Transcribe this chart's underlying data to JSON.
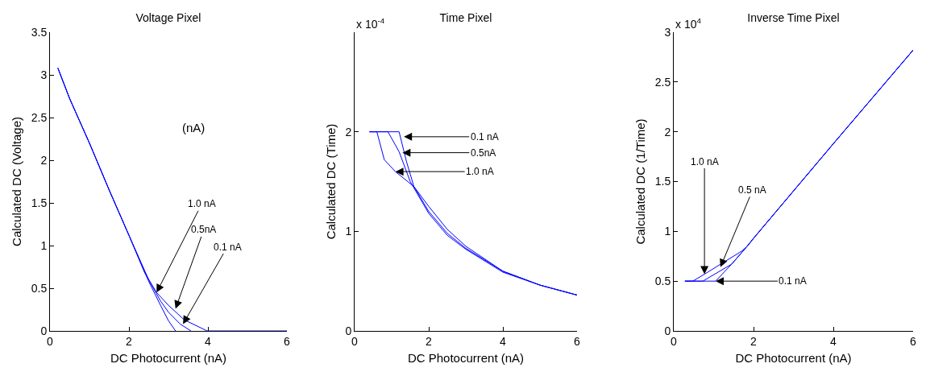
{
  "chart_data": [
    {
      "type": "line",
      "title": "Voltage Pixel",
      "xlabel": "DC Photocurrent (nA)",
      "ylabel": "Calculated DC (Voltage)",
      "xlim": [
        0,
        6
      ],
      "xticks": [
        0,
        2,
        4,
        6
      ],
      "ylim": [
        0,
        3.5
      ],
      "yticks": [
        0,
        0.5,
        1,
        1.5,
        2,
        2.5,
        3,
        3.5
      ],
      "grid": false,
      "marker": "none",
      "line_style": "solid",
      "series": [
        {
          "color": "#0000ff",
          "x": [
            0.2,
            0.5,
            1,
            1.5,
            2,
            2.5,
            2.8,
            3.0,
            3.18
          ],
          "values": [
            3.08,
            2.72,
            2.2,
            1.65,
            1.12,
            0.58,
            0.3,
            0.12,
            0
          ]
        },
        {
          "color": "#0000ff",
          "x": [
            0.2,
            0.5,
            1,
            1.5,
            2,
            2.5,
            2.8,
            3.0,
            3.3,
            3.57
          ],
          "values": [
            3.08,
            2.72,
            2.2,
            1.65,
            1.12,
            0.6,
            0.35,
            0.22,
            0.08,
            0
          ]
        },
        {
          "color": "#0000ff",
          "x": [
            0.2,
            0.5,
            1,
            1.5,
            2,
            2.4,
            2.7,
            3.0,
            3.4,
            3.98,
            6
          ],
          "values": [
            3.08,
            2.72,
            2.2,
            1.65,
            1.12,
            0.68,
            0.45,
            0.3,
            0.13,
            0,
            0
          ]
        }
      ],
      "annotations": [
        "(nA)",
        {
          "text": "1.0 nA",
          "x": 2.7,
          "y": 0.45
        },
        {
          "text": "0.5nA",
          "x": 3.18,
          "y": 0.26
        },
        {
          "text": "0.1 nA",
          "x": 3.37,
          "y": 0.08
        }
      ]
    },
    {
      "type": "line",
      "title": "Time Pixel",
      "xlabel": "DC Photocurrent (nA)",
      "ylabel": "Calculated DC (Time)",
      "xlim": [
        0,
        6
      ],
      "xticks": [
        0,
        2,
        4,
        6
      ],
      "ylim": [
        0,
        3
      ],
      "yticks": [
        0,
        1,
        2
      ],
      "grid": false,
      "marker": "none",
      "line_style": "solid",
      "series": [
        {
          "color": "#0000ff",
          "x": [
            0.4,
            1.2,
            1.4,
            1.6,
            2,
            2.5,
            3,
            4,
            5,
            6
          ],
          "values": [
            2,
            2,
            1.7,
            1.45,
            1.2,
            0.98,
            0.83,
            0.6,
            0.46,
            0.36
          ]
        },
        {
          "color": "#0000ff",
          "x": [
            0.4,
            0.9,
            1.2,
            1.5,
            2,
            2.5,
            3,
            4,
            5,
            6
          ],
          "values": [
            2,
            2,
            1.8,
            1.5,
            1.18,
            0.96,
            0.82,
            0.59,
            0.46,
            0.36
          ]
        },
        {
          "color": "#0000ff",
          "x": [
            0.4,
            0.6,
            0.8,
            1.1,
            1.6,
            2,
            2.5,
            3,
            4,
            5,
            6
          ],
          "values": [
            2,
            2,
            1.72,
            1.6,
            1.45,
            1.25,
            1.02,
            0.85,
            0.6,
            0.46,
            0.36
          ]
        }
      ],
      "annotations": [
        "x 10$^{-4}$",
        {
          "text": "0.1 nA",
          "x": 1.33,
          "y": 1.95
        },
        {
          "text": "0.5nA",
          "x": 1.29,
          "y": 1.79
        },
        {
          "text": "1.0 nA",
          "x": 1.1,
          "y": 1.6
        }
      ]
    },
    {
      "type": "line",
      "title": "Inverse Time Pixel",
      "xlabel": "DC Photocurrent (nA)",
      "ylabel": "Calculated DC (1/Time)",
      "xlim": [
        0,
        6
      ],
      "xticks": [
        0,
        2,
        4,
        6
      ],
      "ylim": [
        0,
        3
      ],
      "yticks": [
        0,
        0.5,
        1,
        1.5,
        2,
        2.5,
        3
      ],
      "grid": false,
      "marker": "none",
      "line_style": "solid",
      "series": [
        {
          "color": "#0000ff",
          "x": [
            0.28,
            1.05,
            1.45,
            1.84,
            2,
            4,
            6
          ],
          "values": [
            0.5,
            0.5,
            0.67,
            0.85,
            0.93,
            1.88,
            2.82
          ]
        },
        {
          "color": "#0000ff",
          "x": [
            0.28,
            0.73,
            1.45,
            1.84,
            2,
            4,
            6
          ],
          "values": [
            0.5,
            0.5,
            0.67,
            0.85,
            0.93,
            1.88,
            2.82
          ]
        },
        {
          "color": "#0000ff",
          "x": [
            0.28,
            0.48,
            0.77,
            1.7,
            1.84,
            2,
            4,
            6
          ],
          "values": [
            0.5,
            0.5,
            0.57,
            0.8,
            0.85,
            0.93,
            1.88,
            2.82
          ]
        }
      ],
      "annotations": [
        "x 10$^{4}$",
        {
          "text": "1.0 nA",
          "x": 0.77,
          "y": 0.57
        },
        {
          "text": "0.5 nA",
          "x": 1.17,
          "y": 0.64
        },
        {
          "text": "0.1 nA",
          "x": 1.05,
          "y": 0.5
        }
      ]
    }
  ]
}
